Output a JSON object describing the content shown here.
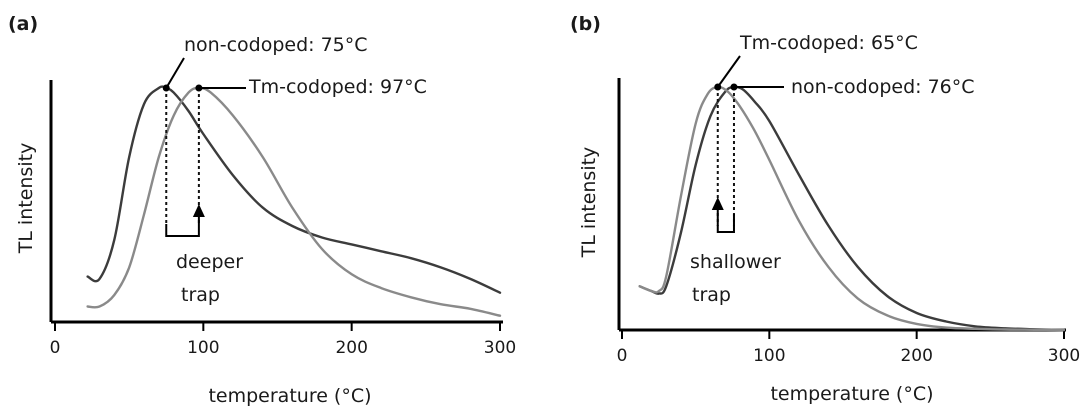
{
  "chart_data": [
    {
      "panel_label": "(a)",
      "type": "line",
      "xlabel": "temperature (°C)",
      "ylabel": "TL intensity",
      "xlim": [
        0,
        300
      ],
      "xticks": [
        0,
        100,
        200,
        300
      ],
      "grid": false,
      "series": [
        {
          "name": "non-codoped",
          "color": "#3c3c3c",
          "x": [
            22,
            30,
            40,
            50,
            60,
            70,
            75,
            80,
            90,
            100,
            120,
            140,
            160,
            180,
            200,
            220,
            240,
            260,
            280,
            300
          ],
          "y": [
            0.18,
            0.17,
            0.34,
            0.7,
            0.93,
            1.0,
            1.0,
            0.98,
            0.9,
            0.8,
            0.62,
            0.48,
            0.4,
            0.35,
            0.32,
            0.29,
            0.26,
            0.22,
            0.17,
            0.11
          ]
        },
        {
          "name": "Tm-codoped",
          "color": "#8a8a8a",
          "x": [
            22,
            30,
            40,
            50,
            60,
            70,
            80,
            90,
            97,
            105,
            120,
            140,
            160,
            180,
            200,
            220,
            240,
            260,
            280,
            300
          ],
          "y": [
            0.05,
            0.05,
            0.1,
            0.22,
            0.45,
            0.7,
            0.88,
            0.98,
            1.0,
            0.98,
            0.88,
            0.7,
            0.48,
            0.3,
            0.19,
            0.13,
            0.09,
            0.06,
            0.04,
            0.01
          ]
        }
      ],
      "annotations": [
        {
          "text": "non-codoped: 75°C",
          "x": 75
        },
        {
          "text": "Tm-codoped: 97°C",
          "x": 97
        },
        {
          "text": "deeper",
          "line2": "trap"
        }
      ]
    },
    {
      "panel_label": "(b)",
      "type": "line",
      "xlabel": "temperature (°C)",
      "ylabel": "TL intensity",
      "xlim": [
        0,
        300
      ],
      "xticks": [
        0,
        100,
        200,
        300
      ],
      "grid": false,
      "series": [
        {
          "name": "non-codoped",
          "color": "#3c3c3c",
          "x": [
            12,
            20,
            25,
            30,
            40,
            50,
            60,
            70,
            76,
            82,
            90,
            100,
            120,
            140,
            160,
            180,
            200,
            220,
            240,
            260,
            280,
            300
          ],
          "y": [
            0.18,
            0.16,
            0.15,
            0.18,
            0.4,
            0.68,
            0.88,
            0.98,
            1.0,
            0.99,
            0.94,
            0.86,
            0.64,
            0.43,
            0.26,
            0.14,
            0.07,
            0.035,
            0.015,
            0.007,
            0.003,
            0.0
          ]
        },
        {
          "name": "Tm-codoped",
          "color": "#8a8a8a",
          "x": [
            12,
            20,
            25,
            30,
            40,
            50,
            58,
            65,
            72,
            80,
            90,
            100,
            120,
            140,
            160,
            180,
            200,
            220,
            240,
            260,
            280,
            300
          ],
          "y": [
            0.18,
            0.16,
            0.16,
            0.22,
            0.55,
            0.85,
            0.97,
            1.0,
            0.98,
            0.92,
            0.82,
            0.7,
            0.45,
            0.26,
            0.13,
            0.06,
            0.025,
            0.01,
            0.005,
            0.002,
            0.001,
            0.0
          ]
        }
      ],
      "annotations": [
        {
          "text": "Tm-codoped: 65°C",
          "x": 65
        },
        {
          "text": "non-codoped: 76°C",
          "x": 76
        },
        {
          "text": "shallower",
          "line2": "trap"
        }
      ]
    }
  ]
}
